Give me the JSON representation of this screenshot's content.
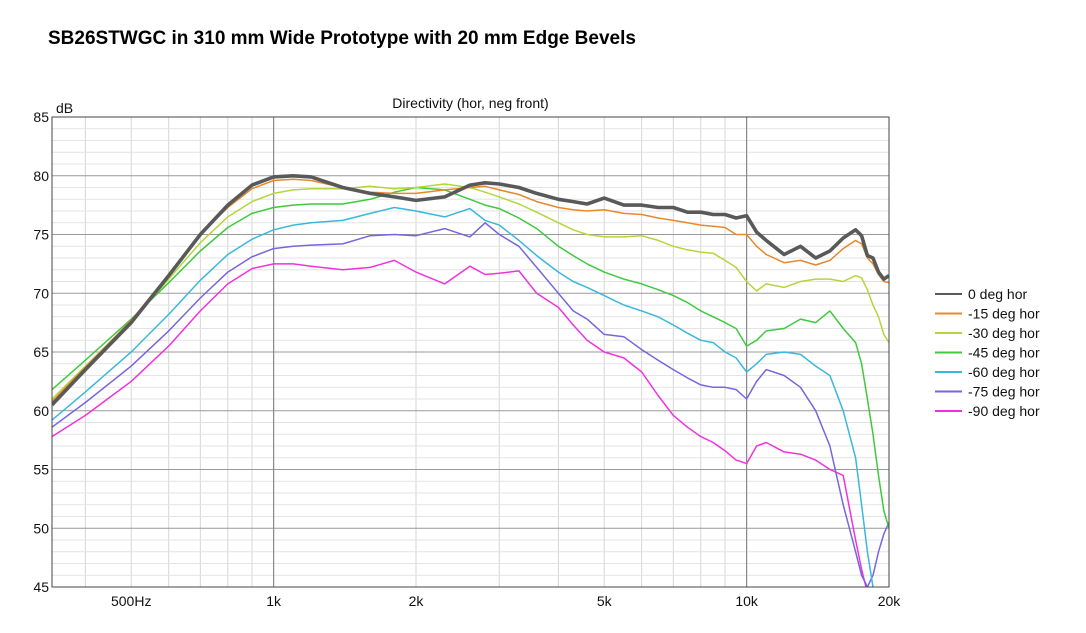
{
  "page_title": "SB26STWGC in 310 mm Wide Prototype with 20 mm Edge Bevels",
  "chart_data": {
    "type": "line",
    "title": "Directivity (hor, neg front)",
    "ylabel": "dB",
    "xlabel": "",
    "x_scale": "log",
    "xlim": [
      340,
      20000
    ],
    "ylim": [
      45,
      85
    ],
    "x_ticks": [
      {
        "value": 500,
        "label": "500Hz"
      },
      {
        "value": 1000,
        "label": "1k"
      },
      {
        "value": 2000,
        "label": "2k"
      },
      {
        "value": 5000,
        "label": "5k"
      },
      {
        "value": 10000,
        "label": "10k"
      },
      {
        "value": 20000,
        "label": "20k"
      }
    ],
    "y_ticks": [
      45,
      50,
      55,
      60,
      65,
      70,
      75,
      80,
      85
    ],
    "grid": true,
    "legend_position": "right",
    "series": [
      {
        "name": "0 deg hor",
        "color": "#595959",
        "x": [
          340,
          400,
          500,
          600,
          700,
          800,
          900,
          1000,
          1100,
          1200,
          1400,
          1600,
          1800,
          2000,
          2300,
          2600,
          2800,
          3000,
          3300,
          3600,
          4000,
          4300,
          4600,
          5000,
          5500,
          6000,
          6500,
          7000,
          7500,
          8000,
          8500,
          9000,
          9500,
          10000,
          10500,
          11000,
          12000,
          13000,
          14000,
          15000,
          16000,
          17000,
          17500,
          18000,
          18500,
          19000,
          19500,
          20000
        ],
        "y": [
          60.5,
          63.5,
          67.5,
          71.5,
          75.0,
          77.5,
          79.2,
          79.9,
          80.0,
          79.9,
          79.0,
          78.5,
          78.2,
          77.9,
          78.2,
          79.2,
          79.4,
          79.3,
          79.0,
          78.5,
          78.0,
          77.8,
          77.6,
          78.1,
          77.5,
          77.5,
          77.3,
          77.3,
          76.9,
          76.9,
          76.7,
          76.7,
          76.4,
          76.6,
          75.2,
          74.5,
          73.3,
          74.0,
          73.0,
          73.6,
          74.7,
          75.4,
          74.9,
          73.2,
          73.0,
          71.8,
          71.2,
          71.5
        ]
      },
      {
        "name": "-15 deg hor",
        "color": "#e8882a",
        "x": [
          340,
          400,
          500,
          600,
          700,
          800,
          900,
          1000,
          1100,
          1200,
          1400,
          1600,
          1800,
          2000,
          2300,
          2600,
          2800,
          3000,
          3300,
          3600,
          4000,
          4300,
          4600,
          5000,
          5500,
          6000,
          6500,
          7000,
          7500,
          8000,
          8500,
          9000,
          9500,
          10000,
          10500,
          11000,
          12000,
          13000,
          14000,
          15000,
          16000,
          17000,
          17500,
          18000,
          18500,
          19000,
          19500,
          20000
        ],
        "y": [
          60.8,
          63.7,
          67.7,
          71.6,
          75.0,
          77.3,
          78.9,
          79.6,
          79.7,
          79.6,
          79.0,
          78.6,
          78.5,
          78.5,
          78.8,
          79.0,
          79.1,
          78.8,
          78.4,
          77.8,
          77.3,
          77.1,
          77.0,
          77.1,
          76.8,
          76.7,
          76.4,
          76.2,
          76.0,
          75.8,
          75.7,
          75.6,
          75.0,
          75.0,
          74.0,
          73.3,
          72.6,
          72.8,
          72.4,
          72.8,
          73.8,
          74.5,
          74.2,
          73.0,
          72.5,
          71.6,
          71.0,
          70.9
        ]
      },
      {
        "name": "-30 deg hor",
        "color": "#b5d63a",
        "x": [
          340,
          400,
          500,
          600,
          700,
          800,
          900,
          1000,
          1100,
          1200,
          1400,
          1600,
          1800,
          2000,
          2300,
          2600,
          2800,
          3000,
          3300,
          3600,
          4000,
          4300,
          4600,
          5000,
          5500,
          6000,
          6500,
          7000,
          7500,
          8000,
          8500,
          9000,
          9500,
          10000,
          10500,
          11000,
          12000,
          13000,
          14000,
          15000,
          16000,
          17000,
          17500,
          18000,
          18500,
          19000,
          19500,
          20000
        ],
        "y": [
          61.0,
          63.8,
          67.6,
          71.2,
          74.3,
          76.5,
          77.8,
          78.5,
          78.8,
          78.9,
          78.9,
          79.1,
          78.9,
          79.0,
          79.3,
          79.0,
          78.6,
          78.2,
          77.6,
          76.9,
          76.0,
          75.4,
          75.0,
          74.8,
          74.8,
          74.9,
          74.5,
          74.0,
          73.7,
          73.5,
          73.4,
          72.8,
          72.2,
          71.0,
          70.2,
          70.8,
          70.5,
          71.0,
          71.2,
          71.2,
          71.0,
          71.5,
          71.3,
          70.3,
          69.0,
          68.0,
          66.5,
          65.8
        ]
      },
      {
        "name": "-45 deg hor",
        "color": "#3fc93f",
        "x": [
          340,
          400,
          500,
          600,
          700,
          800,
          900,
          1000,
          1100,
          1200,
          1400,
          1600,
          1800,
          2000,
          2300,
          2600,
          2800,
          3000,
          3300,
          3600,
          4000,
          4300,
          4600,
          5000,
          5500,
          6000,
          6500,
          7000,
          7500,
          8000,
          8500,
          9000,
          9500,
          10000,
          10500,
          11000,
          12000,
          13000,
          14000,
          15000,
          16000,
          17000,
          17500,
          18000,
          18500,
          19000,
          19500,
          20000
        ],
        "y": [
          61.8,
          64.3,
          67.8,
          70.9,
          73.6,
          75.6,
          76.8,
          77.3,
          77.5,
          77.6,
          77.6,
          78.0,
          78.6,
          79.0,
          78.8,
          78.0,
          77.5,
          77.2,
          76.4,
          75.5,
          74.0,
          73.2,
          72.5,
          71.8,
          71.2,
          70.8,
          70.3,
          69.8,
          69.2,
          68.5,
          68.0,
          67.5,
          67.0,
          65.5,
          66.0,
          66.8,
          67.0,
          67.8,
          67.5,
          68.5,
          67.0,
          65.8,
          64.0,
          61.0,
          58.0,
          54.5,
          51.5,
          50.0
        ]
      },
      {
        "name": "-60 deg hor",
        "color": "#3ab8dc",
        "x": [
          340,
          400,
          500,
          600,
          700,
          800,
          900,
          1000,
          1100,
          1200,
          1400,
          1600,
          1800,
          2000,
          2300,
          2600,
          2800,
          3000,
          3300,
          3600,
          4000,
          4300,
          4600,
          5000,
          5500,
          6000,
          6500,
          7000,
          7500,
          8000,
          8500,
          9000,
          9500,
          10000,
          10500,
          11000,
          12000,
          13000,
          14000,
          15000,
          16000,
          17000,
          17500,
          18000,
          18500,
          19000,
          19500,
          20000
        ],
        "y": [
          59.2,
          61.6,
          65.0,
          68.2,
          71.1,
          73.3,
          74.6,
          75.4,
          75.8,
          76.0,
          76.2,
          76.8,
          77.3,
          77.0,
          76.5,
          77.2,
          76.2,
          75.8,
          74.5,
          73.2,
          71.8,
          71.0,
          70.5,
          69.8,
          69.0,
          68.5,
          68.0,
          67.3,
          66.6,
          66.0,
          65.8,
          65.0,
          64.5,
          63.3,
          64.0,
          64.8,
          65.0,
          64.8,
          63.8,
          63.0,
          60.0,
          56.0,
          52.0,
          48.0,
          45.0,
          44.0,
          44.0,
          44.0
        ]
      },
      {
        "name": "-75 deg hor",
        "color": "#7766dd",
        "x": [
          340,
          400,
          500,
          600,
          700,
          800,
          900,
          1000,
          1100,
          1200,
          1400,
          1600,
          1800,
          2000,
          2300,
          2600,
          2800,
          3000,
          3300,
          3600,
          4000,
          4300,
          4600,
          5000,
          5500,
          6000,
          6500,
          7000,
          7500,
          8000,
          8500,
          9000,
          9500,
          10000,
          10500,
          11000,
          12000,
          13000,
          14000,
          15000,
          16000,
          17000,
          17500,
          18000,
          18500,
          19000,
          19500,
          20000
        ],
        "y": [
          58.6,
          60.7,
          63.8,
          66.8,
          69.6,
          71.8,
          73.1,
          73.8,
          74.0,
          74.1,
          74.2,
          74.9,
          75.0,
          74.9,
          75.5,
          74.8,
          76.0,
          75.0,
          74.0,
          72.2,
          70.0,
          68.5,
          67.8,
          66.5,
          66.3,
          65.2,
          64.3,
          63.5,
          62.8,
          62.2,
          62.0,
          62.0,
          61.8,
          61.0,
          62.5,
          63.5,
          63.0,
          62.0,
          60.0,
          57.0,
          52.0,
          48.0,
          46.0,
          45.0,
          46.0,
          48.0,
          49.5,
          50.5
        ]
      },
      {
        "name": "-90 deg hor",
        "color": "#ee33dd",
        "x": [
          340,
          400,
          500,
          600,
          700,
          800,
          900,
          1000,
          1100,
          1200,
          1400,
          1600,
          1800,
          2000,
          2300,
          2600,
          2800,
          3000,
          3300,
          3600,
          4000,
          4300,
          4600,
          5000,
          5500,
          6000,
          6500,
          7000,
          7500,
          8000,
          8500,
          9000,
          9500,
          10000,
          10500,
          11000,
          12000,
          13000,
          14000,
          15000,
          16000,
          17000,
          17500,
          18000,
          18500,
          19000,
          19500,
          20000
        ],
        "y": [
          57.8,
          59.6,
          62.5,
          65.5,
          68.5,
          70.8,
          72.1,
          72.5,
          72.5,
          72.3,
          72.0,
          72.2,
          72.8,
          71.8,
          70.8,
          72.3,
          71.6,
          71.7,
          71.9,
          70.0,
          68.8,
          67.3,
          66.0,
          65.0,
          64.5,
          63.3,
          61.3,
          59.6,
          58.6,
          57.8,
          57.3,
          56.6,
          55.8,
          55.5,
          57.0,
          57.3,
          56.5,
          56.3,
          55.8,
          55.0,
          54.5,
          49.0,
          46.5,
          44.5,
          44.0,
          44.0,
          44.0,
          44.0
        ]
      }
    ]
  }
}
